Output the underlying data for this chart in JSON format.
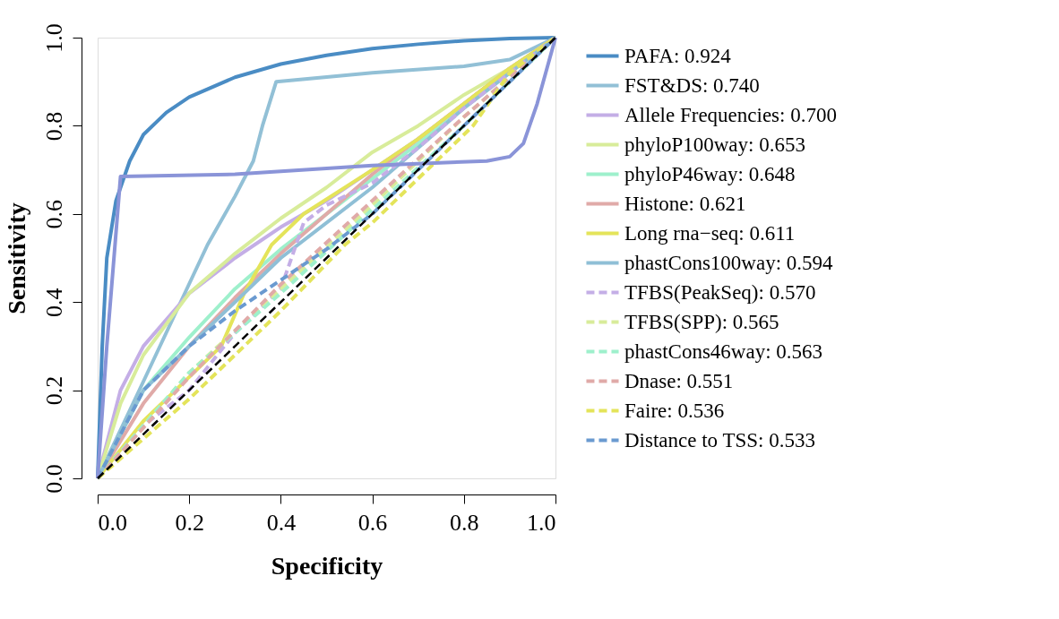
{
  "chart_data": {
    "type": "line",
    "xlabel": "Specificity",
    "ylabel": "Sensitivity",
    "xlim": [
      0,
      1
    ],
    "ylim": [
      0,
      1
    ],
    "xticks": [
      {
        "value": 0,
        "label": "0.0"
      },
      {
        "value": 0.2,
        "label": "0.2"
      },
      {
        "value": 0.4,
        "label": "0.4"
      },
      {
        "value": 0.6,
        "label": "0.6"
      },
      {
        "value": 0.8,
        "label": "0.8"
      },
      {
        "value": 1,
        "label": "1.0"
      }
    ],
    "yticks": [
      {
        "value": 0,
        "label": "0.0"
      },
      {
        "value": 0.2,
        "label": "0.2"
      },
      {
        "value": 0.4,
        "label": "0.4"
      },
      {
        "value": 0.6,
        "label": "0.6"
      },
      {
        "value": 0.8,
        "label": "0.8"
      },
      {
        "value": 1,
        "label": "1.0"
      }
    ],
    "grid": false,
    "legend": "right",
    "marker": "none",
    "series": [
      {
        "name": "PAFA: 0.924",
        "color": "#4a8cc4",
        "line_style": "solid",
        "x": [
          0,
          0.01,
          0.02,
          0.04,
          0.07,
          0.1,
          0.15,
          0.2,
          0.3,
          0.4,
          0.5,
          0.6,
          0.7,
          0.8,
          0.9,
          1
        ],
        "values": [
          0,
          0.3,
          0.5,
          0.63,
          0.72,
          0.78,
          0.83,
          0.865,
          0.91,
          0.94,
          0.96,
          0.975,
          0.985,
          0.993,
          0.998,
          1
        ]
      },
      {
        "name": "FST&DS: 0.740",
        "color": "#92c0d6",
        "line_style": "solid",
        "x": [
          0,
          0.1,
          0.24,
          0.3,
          0.34,
          0.36,
          0.39,
          0.6,
          0.8,
          0.9,
          1
        ],
        "values": [
          0,
          0.22,
          0.53,
          0.64,
          0.72,
          0.8,
          0.9,
          0.92,
          0.935,
          0.95,
          1
        ]
      },
      {
        "name": "Allele Frequencies: 0.700",
        "color": "#c4aee6",
        "line_style": "solid",
        "x": [
          0,
          0.05,
          0.1,
          0.2,
          0.3,
          0.4,
          0.5,
          0.6,
          0.7,
          0.8,
          0.9,
          1
        ],
        "values": [
          0,
          0.2,
          0.3,
          0.42,
          0.5,
          0.57,
          0.63,
          0.7,
          0.77,
          0.85,
          0.93,
          1
        ]
      },
      {
        "name": "phyloP100way: 0.653",
        "color": "#d8ec9a",
        "line_style": "solid",
        "x": [
          0,
          0.05,
          0.1,
          0.2,
          0.3,
          0.4,
          0.5,
          0.6,
          0.7,
          0.8,
          0.9,
          1
        ],
        "values": [
          0,
          0.17,
          0.28,
          0.42,
          0.51,
          0.59,
          0.66,
          0.74,
          0.8,
          0.87,
          0.93,
          1
        ]
      },
      {
        "name": "phyloP46way: 0.648",
        "color": "#9ef0cc",
        "line_style": "solid",
        "x": [
          0,
          0.1,
          0.2,
          0.3,
          0.4,
          0.5,
          0.6,
          0.7,
          0.8,
          0.9,
          1
        ],
        "values": [
          0,
          0.2,
          0.32,
          0.43,
          0.52,
          0.6,
          0.68,
          0.76,
          0.84,
          0.92,
          1
        ]
      },
      {
        "name": "Histone: 0.621",
        "color": "#e0aaa8",
        "line_style": "solid",
        "x": [
          0,
          0.1,
          0.2,
          0.3,
          0.4,
          0.5,
          0.6,
          0.7,
          0.8,
          0.9,
          1
        ],
        "values": [
          0,
          0.17,
          0.3,
          0.41,
          0.51,
          0.6,
          0.69,
          0.77,
          0.85,
          0.93,
          1
        ]
      },
      {
        "name": "Long rna−seq: 0.611",
        "color": "#e4e45a",
        "line_style": "solid",
        "x": [
          0,
          0.1,
          0.2,
          0.27,
          0.32,
          0.38,
          0.45,
          0.6,
          0.7,
          0.8,
          0.9,
          1
        ],
        "values": [
          0,
          0.13,
          0.23,
          0.3,
          0.42,
          0.53,
          0.6,
          0.7,
          0.77,
          0.85,
          0.93,
          1
        ]
      },
      {
        "name": "phastCons100way: 0.594",
        "color": "#8fbfd6",
        "line_style": "solid",
        "x": [
          0,
          0.1,
          0.2,
          0.4,
          0.6,
          0.8,
          1
        ],
        "values": [
          0,
          0.2,
          0.3,
          0.5,
          0.66,
          0.84,
          1
        ]
      },
      {
        "name": "TFBS(PeakSeq):  0.570",
        "color": "#c4aee6",
        "line_style": "dashed",
        "x": [
          0,
          0.1,
          0.2,
          0.3,
          0.4,
          0.45,
          0.5,
          0.6,
          0.7,
          0.8,
          0.9,
          1
        ],
        "values": [
          0,
          0.12,
          0.2,
          0.33,
          0.43,
          0.58,
          0.62,
          0.67,
          0.75,
          0.84,
          0.92,
          1
        ]
      },
      {
        "name": "TFBS(SPP):  0.565",
        "color": "#d8ec9a",
        "line_style": "dashed",
        "x": [
          0,
          0.2,
          0.4,
          0.6,
          0.8,
          1
        ],
        "values": [
          0,
          0.24,
          0.43,
          0.62,
          0.82,
          1
        ]
      },
      {
        "name": "phastCons46way:  0.563",
        "color": "#9ef0cc",
        "line_style": "dashed",
        "x": [
          0,
          0.2,
          0.4,
          0.6,
          0.8,
          1
        ],
        "values": [
          0,
          0.24,
          0.42,
          0.61,
          0.8,
          1
        ]
      },
      {
        "name": "Dnase: 0.551",
        "color": "#e0aaa8",
        "line_style": "dashed",
        "x": [
          0,
          0.2,
          0.4,
          0.6,
          0.8,
          1
        ],
        "values": [
          0,
          0.23,
          0.44,
          0.63,
          0.82,
          1
        ]
      },
      {
        "name": "Faire: 0.536",
        "color": "#e4e45a",
        "line_style": "dashed",
        "x": [
          0,
          0.2,
          0.4,
          0.54,
          0.6,
          0.75,
          0.82,
          0.9,
          1
        ],
        "values": [
          0,
          0.18,
          0.38,
          0.53,
          0.58,
          0.73,
          0.8,
          0.92,
          1
        ]
      },
      {
        "name": "Distance to TSS: 0.533",
        "color": "#6a9ad0",
        "line_style": "dashed",
        "x": [
          0,
          0.1,
          0.2,
          0.3,
          0.4,
          0.5,
          0.6,
          0.7,
          0.8,
          0.9,
          1
        ],
        "values": [
          0,
          0.2,
          0.3,
          0.38,
          0.45,
          0.52,
          0.6,
          0.7,
          0.8,
          0.9,
          1
        ]
      },
      {
        "color": "#8a94d8",
        "line_style": "solid",
        "x": [
          0,
          0.02,
          0.05,
          0.3,
          0.6,
          0.85,
          0.9,
          0.93,
          0.96,
          1
        ],
        "values": [
          0,
          0.3,
          0.685,
          0.69,
          0.71,
          0.72,
          0.73,
          0.76,
          0.85,
          1
        ]
      },
      {
        "color": "#000000",
        "line_style": "dashed",
        "x": [
          0,
          1
        ],
        "values": [
          0,
          1
        ]
      }
    ]
  }
}
